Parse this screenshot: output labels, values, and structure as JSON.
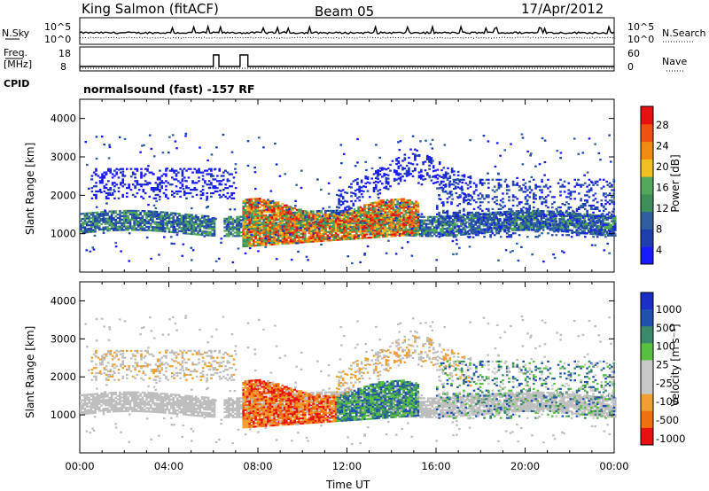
{
  "header": {
    "station": "King Salmon (fitACF)",
    "beam": "Beam 05",
    "date": "17/Apr/2012"
  },
  "strip": {
    "left_top_label": "N.Sky",
    "right_top_label": "N.Search",
    "left_top_ticks": [
      "10^5",
      "10^0"
    ],
    "right_top_ticks": [
      "10^5",
      "10^0"
    ],
    "freq_label": "Freq.",
    "freq_unit": "[MHz]",
    "freq_ticks": [
      "18",
      "8"
    ],
    "nave_label": "Nave",
    "nave_ticks": [
      "60",
      "0"
    ],
    "cpid_label": "CPID",
    "cpid_text": "normalsound (fast) -157 RF"
  },
  "colors": {
    "power_scale": [
      "#1a1aff",
      "#1d3fae",
      "#2f5ea0",
      "#3f8f5a",
      "#52a85a",
      "#f0c020",
      "#f08a10",
      "#f05010",
      "#e81010"
    ],
    "velocity_scale": [
      "#1a2fc8",
      "#2050b0",
      "#3a8a6a",
      "#58c040",
      "#c8c8c8",
      "#c8c8c8",
      "#f0a030",
      "#f07010",
      "#e81010"
    ],
    "ground_scatter": "#bebebe"
  },
  "chart_data": [
    {
      "type": "heatmap",
      "ylabel": "Slant Range [km]",
      "colorbar_label": "Power [dB]",
      "colorbar_ticks": [
        "28",
        "24",
        "20",
        "16",
        "12",
        "8",
        "4"
      ],
      "yticks": [
        "4000",
        "3000",
        "2000",
        "1000"
      ],
      "ylim": [
        0,
        4500
      ],
      "xlim": [
        0,
        24
      ]
    },
    {
      "type": "heatmap",
      "ylabel": "Slant Range [km]",
      "colorbar_label": "Velocity [m s⁻¹]",
      "colorbar_ticks": [
        "1000",
        "500",
        "100",
        "25",
        "-25",
        "-100",
        "-500",
        "-1000"
      ],
      "yticks": [
        "4000",
        "3000",
        "2000",
        "1000"
      ],
      "ylim": [
        0,
        4500
      ],
      "xlim": [
        0,
        24
      ],
      "xticks": [
        "00:00",
        "04:00",
        "08:00",
        "12:00",
        "16:00",
        "20:00",
        "00:00"
      ],
      "xlabel": "Time UT"
    }
  ]
}
